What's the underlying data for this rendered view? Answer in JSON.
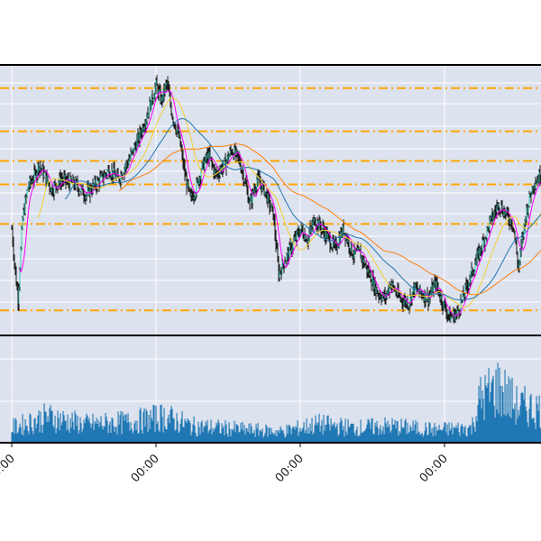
{
  "chart_data": {
    "type": "candlestick",
    "panels": [
      "price",
      "volume"
    ],
    "grid": true,
    "price_axis": {
      "ylim": [
        0,
        100
      ]
    },
    "volume_axis": {
      "ylim": [
        0,
        100
      ]
    },
    "x_ticks": [
      {
        "x": 0,
        "label": "00:00"
      },
      {
        "x": 160,
        "label": "00:00"
      },
      {
        "x": 320,
        "label": "00:00"
      },
      {
        "x": 480,
        "label": "00:00"
      }
    ],
    "x_range": [
      -13,
      587
    ],
    "levels": [
      95,
      77.5,
      65.5,
      56,
      40,
      5
    ],
    "anchors": [
      [
        0,
        38
      ],
      [
        4,
        20
      ],
      [
        7,
        10
      ],
      [
        12,
        42
      ],
      [
        18,
        55
      ],
      [
        26,
        60
      ],
      [
        30,
        64
      ],
      [
        36,
        60
      ],
      [
        44,
        54
      ],
      [
        55,
        58
      ],
      [
        70,
        56
      ],
      [
        82,
        52
      ],
      [
        96,
        57
      ],
      [
        108,
        62
      ],
      [
        118,
        58
      ],
      [
        130,
        66
      ],
      [
        140,
        74
      ],
      [
        148,
        82
      ],
      [
        155,
        90
      ],
      [
        160,
        96
      ],
      [
        166,
        90
      ],
      [
        172,
        97
      ],
      [
        178,
        84
      ],
      [
        186,
        74
      ],
      [
        192,
        60
      ],
      [
        198,
        50
      ],
      [
        204,
        54
      ],
      [
        210,
        62
      ],
      [
        218,
        68
      ],
      [
        226,
        60
      ],
      [
        236,
        64
      ],
      [
        244,
        70
      ],
      [
        252,
        66
      ],
      [
        258,
        58
      ],
      [
        264,
        48
      ],
      [
        272,
        58
      ],
      [
        280,
        54
      ],
      [
        290,
        44
      ],
      [
        296,
        20
      ],
      [
        304,
        26
      ],
      [
        312,
        32
      ],
      [
        320,
        38
      ],
      [
        328,
        34
      ],
      [
        336,
        42
      ],
      [
        348,
        36
      ],
      [
        358,
        30
      ],
      [
        368,
        38
      ],
      [
        378,
        28
      ],
      [
        386,
        28
      ],
      [
        396,
        20
      ],
      [
        406,
        12
      ],
      [
        414,
        10
      ],
      [
        420,
        16
      ],
      [
        430,
        10
      ],
      [
        440,
        8
      ],
      [
        446,
        14
      ],
      [
        454,
        12
      ],
      [
        462,
        10
      ],
      [
        470,
        16
      ],
      [
        478,
        8
      ],
      [
        486,
        2
      ],
      [
        494,
        4
      ],
      [
        500,
        10
      ],
      [
        508,
        18
      ],
      [
        516,
        26
      ],
      [
        524,
        34
      ],
      [
        532,
        42
      ],
      [
        540,
        48
      ],
      [
        548,
        44
      ],
      [
        556,
        40
      ],
      [
        562,
        22
      ],
      [
        570,
        44
      ],
      [
        578,
        56
      ],
      [
        587,
        60
      ]
    ],
    "volume_anchors": [
      [
        0,
        16
      ],
      [
        40,
        28
      ],
      [
        80,
        20
      ],
      [
        130,
        22
      ],
      [
        170,
        28
      ],
      [
        200,
        18
      ],
      [
        260,
        14
      ],
      [
        300,
        12
      ],
      [
        340,
        20
      ],
      [
        380,
        16
      ],
      [
        420,
        18
      ],
      [
        470,
        14
      ],
      [
        510,
        16
      ],
      [
        520,
        48
      ],
      [
        540,
        60
      ],
      [
        560,
        40
      ],
      [
        587,
        36
      ]
    ],
    "series": [
      {
        "kind": "sma",
        "window": 10,
        "color": "#ff00ff"
      },
      {
        "kind": "sma",
        "window": 30,
        "color": "#f5d033"
      },
      {
        "kind": "sma",
        "window": 60,
        "color": "#1f77b4"
      },
      {
        "kind": "sma",
        "window": 120,
        "color": "#ff7f0e"
      }
    ],
    "colors": {
      "panel_bg": "#dce2ee",
      "grid": "#ffffff",
      "frame": "#000000",
      "level_line": "#ffa500",
      "candle_body": "#3cc6b8",
      "candle_wick": "#1a1a1a",
      "volume_bar": "#1f77b4"
    }
  }
}
